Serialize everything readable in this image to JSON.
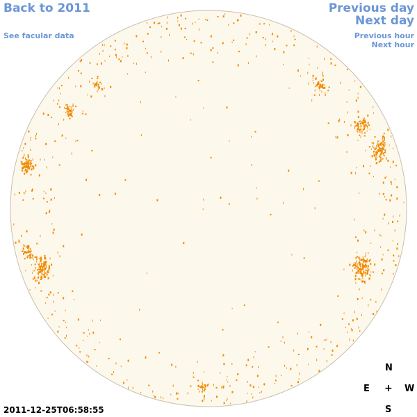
{
  "nav": {
    "back_label": "Back to 2011",
    "facular_label": "See facular data",
    "previous_day_label": "Previous day",
    "next_day_label": "Next day",
    "previous_hour_label": "Previous hour",
    "next_hour_label": "Next hour"
  },
  "compass": {
    "north": "N",
    "east": "E",
    "center": "+",
    "west": "W",
    "south": "S"
  },
  "timestamp": "2011-12-25T06:58:55",
  "colors": {
    "link": "#6b96d6",
    "disk_fill": "#fdf8ec",
    "disk_edge": "#c8bfae",
    "facula": "#f08a00"
  }
}
